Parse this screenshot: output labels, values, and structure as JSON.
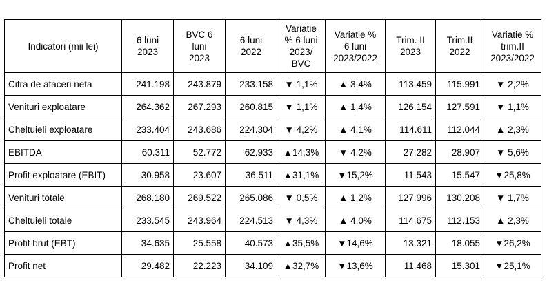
{
  "table": {
    "headers": [
      [
        "Indicatori (mii lei)"
      ],
      [
        "6 luni",
        "2023"
      ],
      [
        "BVC 6",
        "luni",
        "2023"
      ],
      [
        "6 luni",
        "2022"
      ],
      [
        "Variatie",
        "% 6 luni",
        "2023/",
        "BVC"
      ],
      [
        "Variatie %",
        "6 luni",
        "2023/2022"
      ],
      [
        "Trim. II",
        "2023"
      ],
      [
        "Trim.II",
        "2022"
      ],
      [
        "Variatie %",
        "trim.II",
        "2023/2022"
      ]
    ],
    "rows": [
      [
        "Cifra de afaceri neta",
        "241.198",
        "243.879",
        "233.158",
        "▼ 1,1%",
        "▲ 3,4%",
        "113.459",
        "115.991",
        "▼ 2,2%"
      ],
      [
        "Venituri exploatare",
        "264.362",
        "267.293",
        "260.815",
        "▼ 1,1%",
        "▲ 1,4%",
        "126.154",
        "127.591",
        "▼ 1,1%"
      ],
      [
        "Cheltuieli exploatare",
        "233.404",
        "243.686",
        "224.304",
        "▼ 4,2%",
        "▲ 4,1%",
        "114.611",
        "112.044",
        "▲ 2,3%"
      ],
      [
        "EBITDA",
        "60.311",
        "52.772",
        "62.933",
        "▲14,3%",
        "▼ 4,2%",
        "27.282",
        "28.907",
        "▼ 5,6%"
      ],
      [
        "Profit exploatare (EBIT)",
        "30.958",
        "23.607",
        "36.511",
        "▲31,1%",
        "▼15,2%",
        "11.543",
        "15.547",
        "▼25,8%"
      ],
      [
        "Venituri totale",
        "268.180",
        "269.522",
        "265.086",
        "▼ 0,5%",
        "▲ 1,2%",
        "127.996",
        "130.208",
        "▼ 1,7%"
      ],
      [
        "Cheltuieli totale",
        "233.545",
        "243.964",
        "224.513",
        "▼ 4,3%",
        "▲ 4,0%",
        "114.675",
        "112.153",
        "▲ 2,3%"
      ],
      [
        "Profit brut (EBT)",
        "34.635",
        "25.558",
        "40.573",
        "▲35,5%",
        "▼14,6%",
        "13.321",
        "18.055",
        "▼26,2%"
      ],
      [
        "Profit net",
        "29.482",
        "22.223",
        "34.109",
        "▲32,7%",
        "▼13,6%",
        "11.468",
        "15.301",
        "▼25,1%"
      ]
    ]
  }
}
